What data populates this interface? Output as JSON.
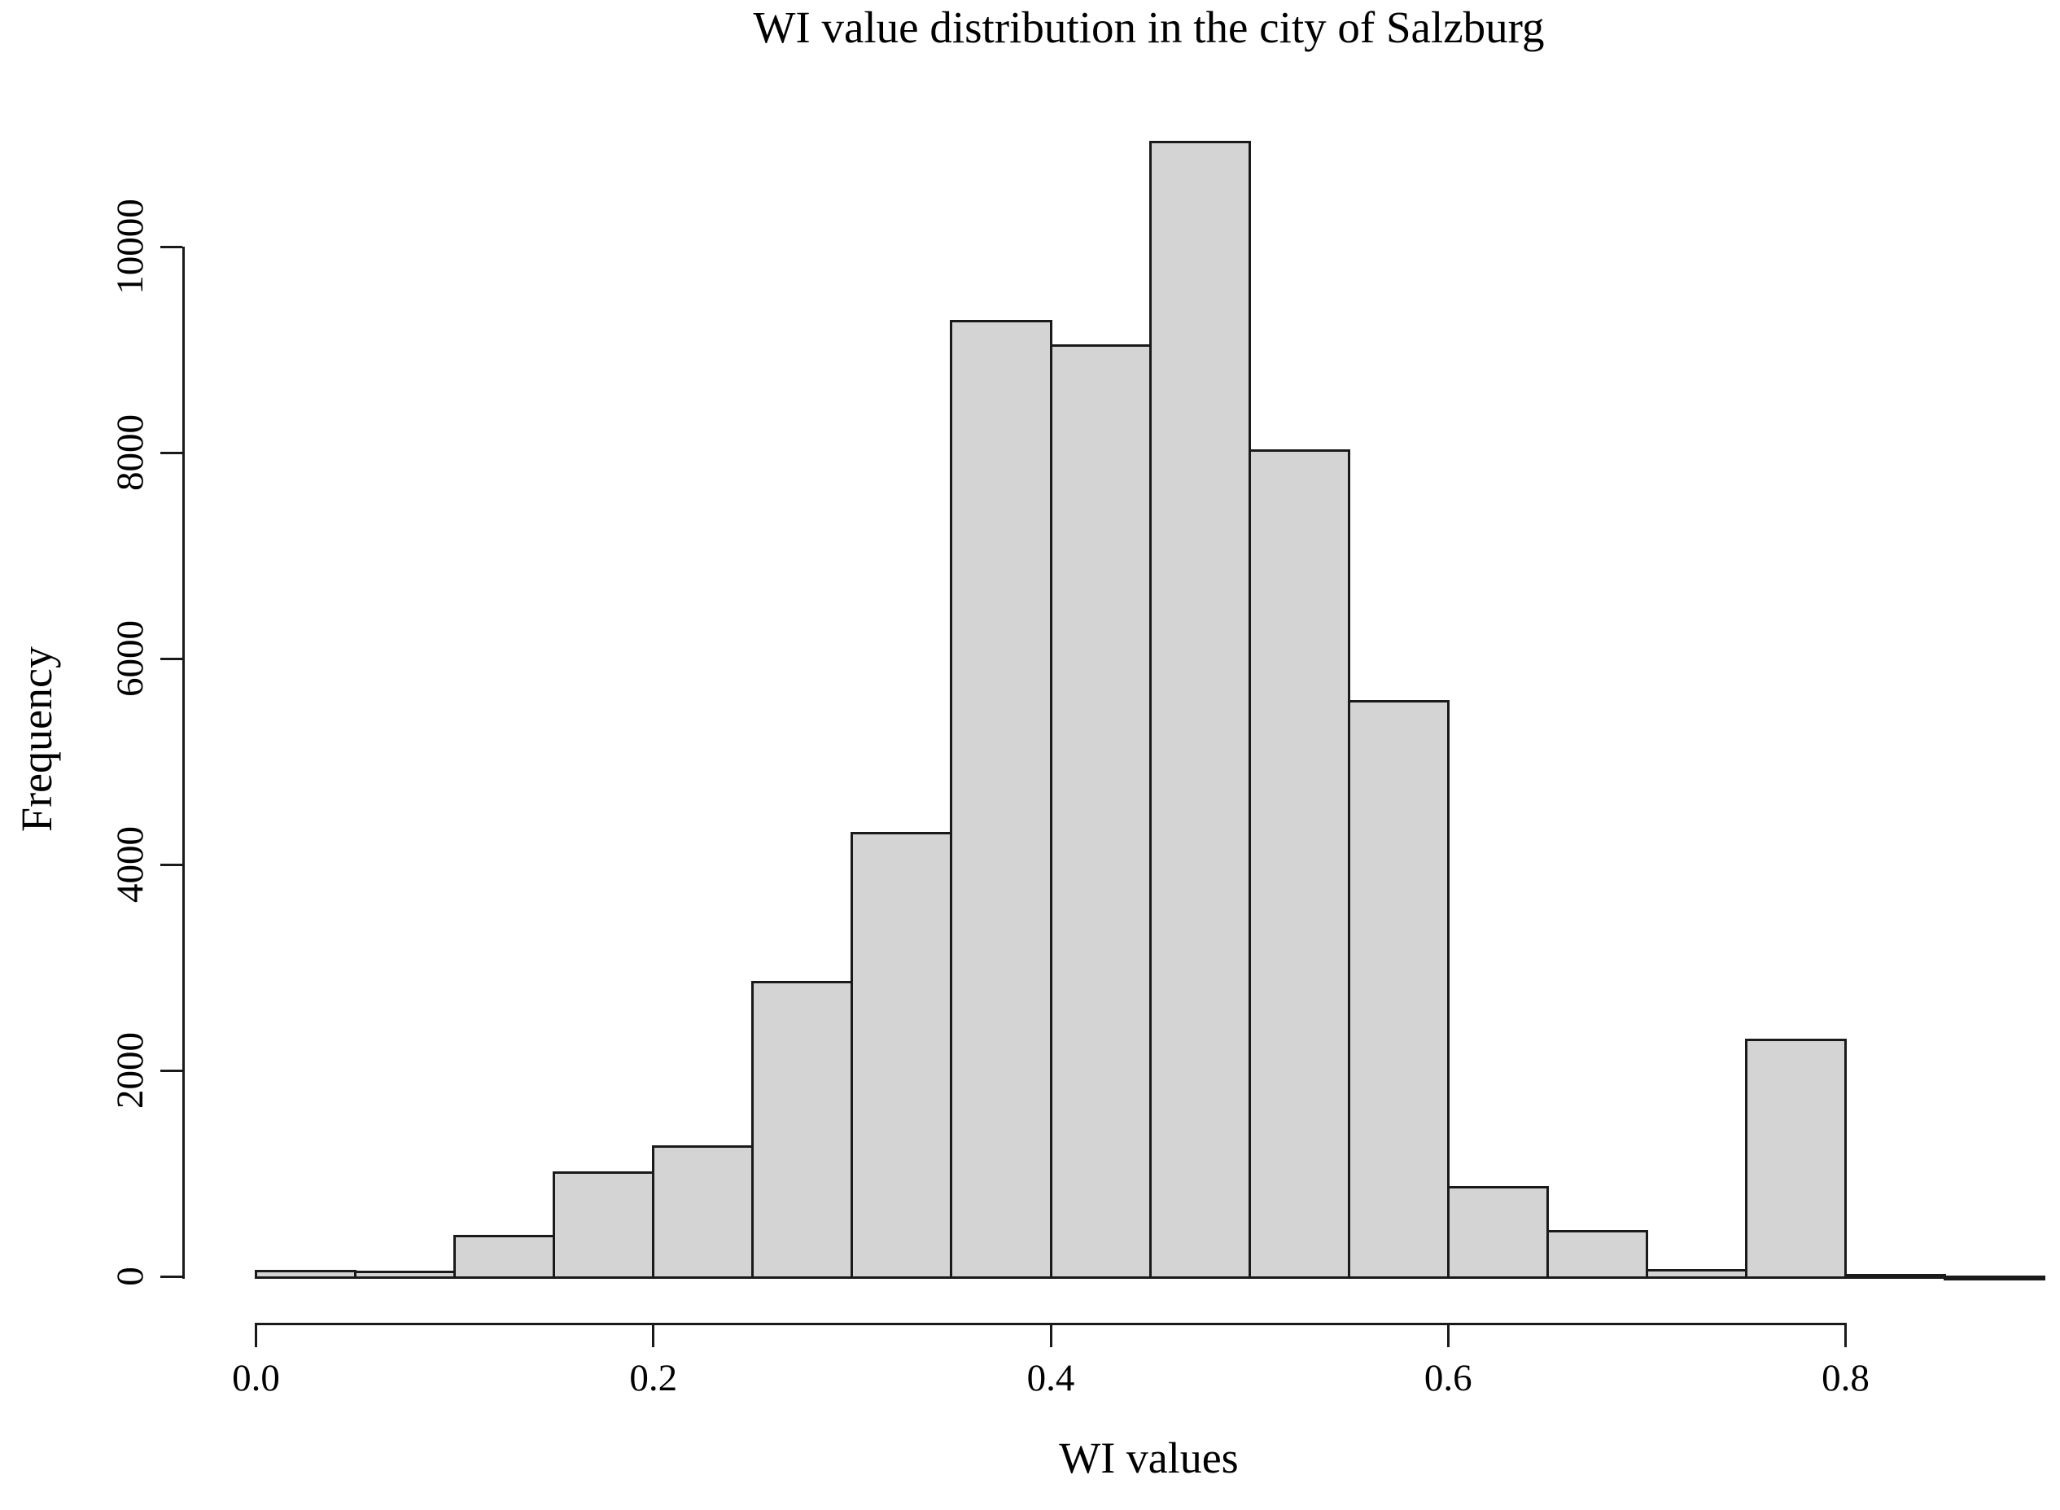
{
  "figure": {
    "title": "WI value distribution in the city of Salzburg",
    "x_axis_label": "WI values",
    "y_axis_label": "Frequency"
  },
  "chart_data": {
    "type": "bar",
    "subtype": "histogram",
    "title": "WI value distribution in the city of Salzburg",
    "xlabel": "WI values",
    "ylabel": "Frequency",
    "bin_width": 0.05,
    "bin_edges": [
      0.0,
      0.05,
      0.1,
      0.15,
      0.2,
      0.25,
      0.3,
      0.35,
      0.4,
      0.45,
      0.5,
      0.55,
      0.6,
      0.65,
      0.7,
      0.75,
      0.8,
      0.85,
      0.9
    ],
    "counts": [
      65,
      55,
      400,
      1020,
      1270,
      2870,
      4320,
      9290,
      9050,
      11030,
      8030,
      5600,
      880,
      450,
      70,
      2310,
      20,
      10
    ],
    "x_ticks": [
      0.0,
      0.2,
      0.4,
      0.6,
      0.8
    ],
    "x_tick_labels": [
      "0.0",
      "0.2",
      "0.4",
      "0.6",
      "0.8"
    ],
    "y_ticks": [
      0,
      2000,
      4000,
      6000,
      8000,
      10000
    ],
    "y_tick_labels": [
      "0",
      "2000",
      "4000",
      "6000",
      "8000",
      "10000"
    ],
    "xlim": [
      0.0,
      0.9
    ],
    "ylim": [
      0,
      11030
    ],
    "grid": false,
    "legend": null,
    "colors": {
      "bar_fill": "#d4d4d4",
      "bar_border": "#1a1a1a",
      "axis": "#1a1a1a",
      "text": "#000000",
      "background": "#ffffff"
    }
  }
}
